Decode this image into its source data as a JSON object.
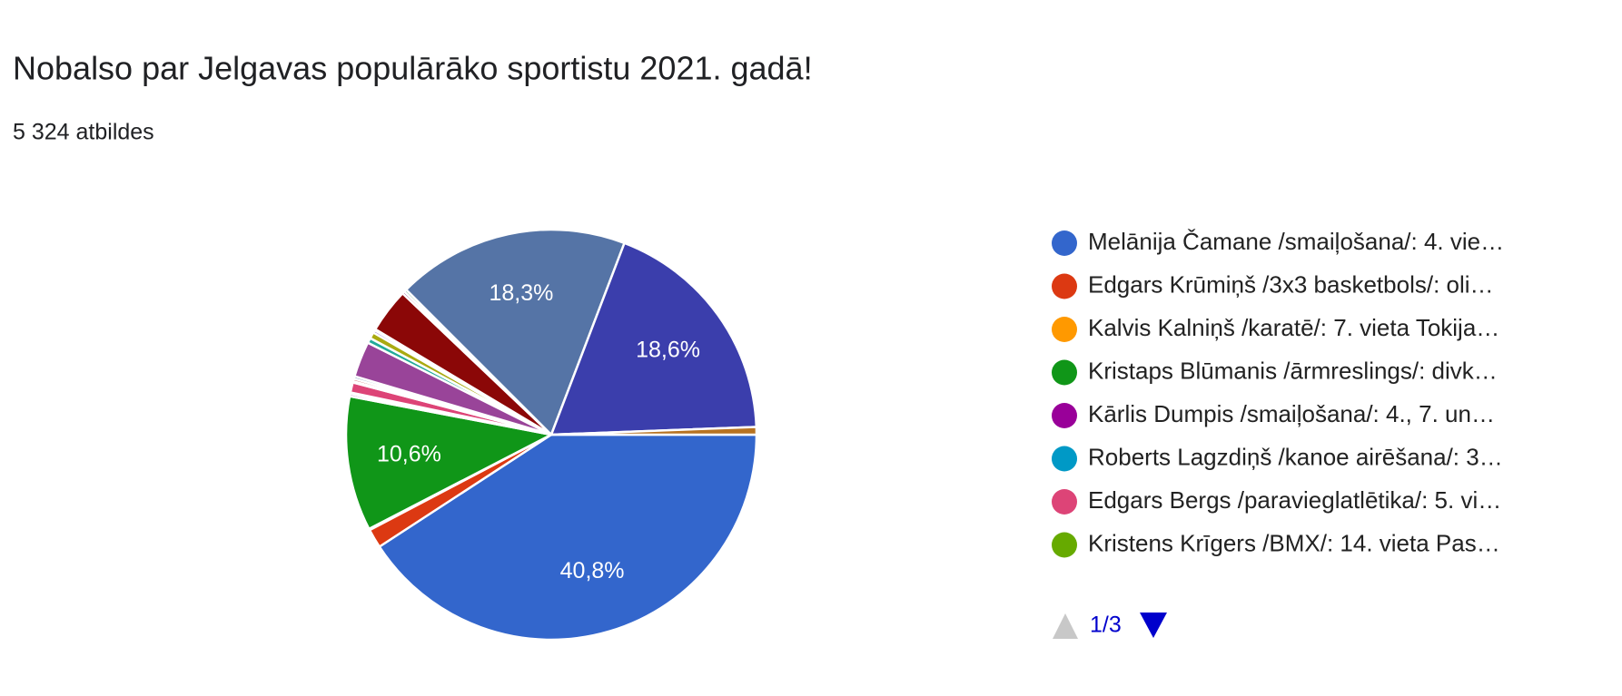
{
  "chart_data": {
    "type": "pie",
    "title": "Nobalso par Jelgavas populārāko sportistu 2021. gadā!",
    "subtitle": "5 324 atbildes",
    "categories": [
      "Melānija Čamane /smaiļošana/: 4. vie…",
      "Edgars Krūmiņš /3x3 basketbols/: oli…",
      "Kalvis Kalniņš /karatē/: 7. vieta Tokija…",
      "Kristaps Blūmanis /ārmreslings/: divk…",
      "Kārlis Dumpis /smaiļošana/: 4., 7. un…",
      "Roberts Lagzdiņš /kanoe airēšana/: 3…",
      "Edgars Bergs /paravieglatlētika/: 5. vi…",
      "Kristens Krīgers /BMX/: 14. vieta Pas…",
      null,
      null,
      null,
      null,
      null,
      null,
      null,
      null,
      null,
      null,
      null,
      null,
      null
    ],
    "values": [
      40.8,
      1.5,
      0.1,
      10.6,
      0.2,
      0.1,
      0.8,
      0.1,
      0.2,
      0.2,
      2.8,
      0.4,
      0.5,
      0.2,
      0.1,
      3.5,
      0.2,
      0.2,
      18.3,
      18.6,
      0.6
    ],
    "value_labels": [
      "40,8%",
      null,
      null,
      "10,6%",
      null,
      null,
      null,
      null,
      null,
      null,
      null,
      null,
      null,
      null,
      null,
      null,
      null,
      null,
      "18,3%",
      "18,6%",
      null
    ],
    "colors": [
      "#3366cc",
      "#dc3912",
      "#ff9900",
      "#109618",
      "#990099",
      "#0099c6",
      "#dd4477",
      "#66aa00",
      "#b82e2e",
      "#316395",
      "#994499",
      "#22aa99",
      "#aaaa11",
      "#6633cc",
      "#e67300",
      "#8b0707",
      "#651067",
      "#329262",
      "#5574a6",
      "#3b3eac",
      "#b77322"
    ],
    "start_angle": 90,
    "legend_page_size": 8,
    "pager": "1/3"
  }
}
